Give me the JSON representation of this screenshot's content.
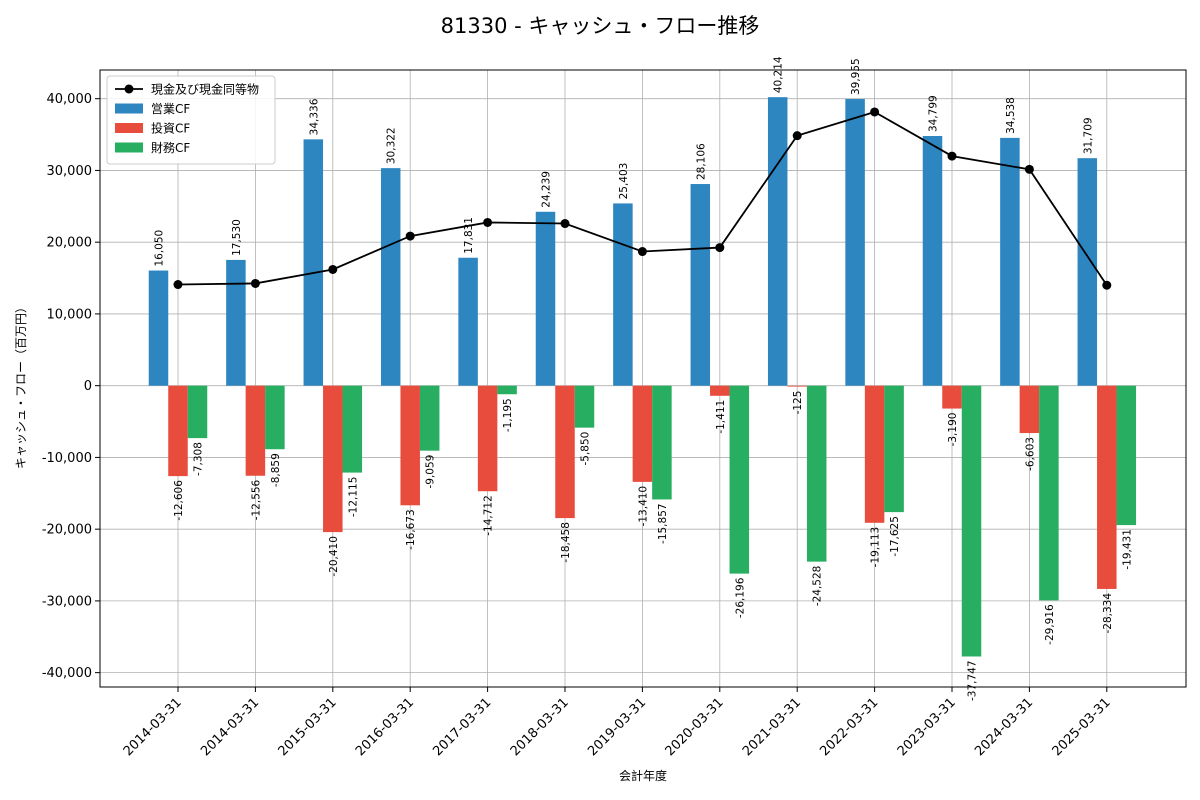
{
  "chart_data": {
    "type": "bar",
    "title": "81330 - キャッシュ・フロー推移",
    "xlabel": "会計年度",
    "ylabel": "キャッシュ・フロー（百万円）",
    "ylim": [
      -42000,
      44000
    ],
    "yticks": [
      -40000,
      -30000,
      -20000,
      -10000,
      0,
      10000,
      20000,
      30000,
      40000
    ],
    "ytick_labels": [
      "-40,000",
      "-30,000",
      "-20,000",
      "-10,000",
      "0",
      "10,000",
      "20,000",
      "30,000",
      "40,000"
    ],
    "grid": true,
    "legend_position": "top-left",
    "categories": [
      "2014-03-31",
      "2014-03-31",
      "2015-03-31",
      "2016-03-31",
      "2017-03-31",
      "2018-03-31",
      "2019-03-31",
      "2020-03-31",
      "2021-03-31",
      "2022-03-31",
      "2023-03-31",
      "2024-03-31",
      "2025-03-31"
    ],
    "series": [
      {
        "name": "営業CF",
        "kind": "bar",
        "color": "#2e86c1",
        "values": [
          16050,
          17530,
          34336,
          30322,
          17831,
          24239,
          25403,
          28106,
          40214,
          39955,
          34799,
          34538,
          31709
        ],
        "labels": [
          "16,050",
          "17,530",
          "34,336",
          "30,322",
          "17,831",
          "24,239",
          "25,403",
          "28,106",
          "40,214",
          "39,955",
          "34,799",
          "34,538",
          "31,709"
        ]
      },
      {
        "name": "投資CF",
        "kind": "bar",
        "color": "#e74c3c",
        "values": [
          -12606,
          -12556,
          -20410,
          -16673,
          -14712,
          -18458,
          -13410,
          -1411,
          -125,
          -19113,
          -3190,
          -6603,
          -28334
        ],
        "labels": [
          "-12,606",
          "-12,556",
          "-20,410",
          "-16,673",
          "-14,712",
          "-18,458",
          "-13,410",
          "-1,411",
          "-125",
          "-19,113",
          "-3,190",
          "-6,603",
          "-28,334"
        ]
      },
      {
        "name": "財務CF",
        "kind": "bar",
        "color": "#27ae60",
        "values": [
          -7308,
          -8859,
          -12115,
          -9059,
          -1195,
          -5850,
          -15857,
          -26196,
          -24528,
          -17625,
          -37747,
          -29916,
          -19431
        ],
        "labels": [
          "-7,308",
          "-8,859",
          "-12,115",
          "-9,059",
          "-1,195",
          "-5,850",
          "-15,857",
          "-26,196",
          "-24,528",
          "-17,625",
          "-37,747",
          "-29,916",
          "-19,431"
        ]
      },
      {
        "name": "現金及び現金同等物",
        "kind": "line",
        "color": "#000000",
        "values": [
          14100,
          14250,
          16200,
          20850,
          22750,
          22600,
          18700,
          19250,
          34850,
          38150,
          32000,
          30150,
          14000
        ]
      }
    ]
  }
}
